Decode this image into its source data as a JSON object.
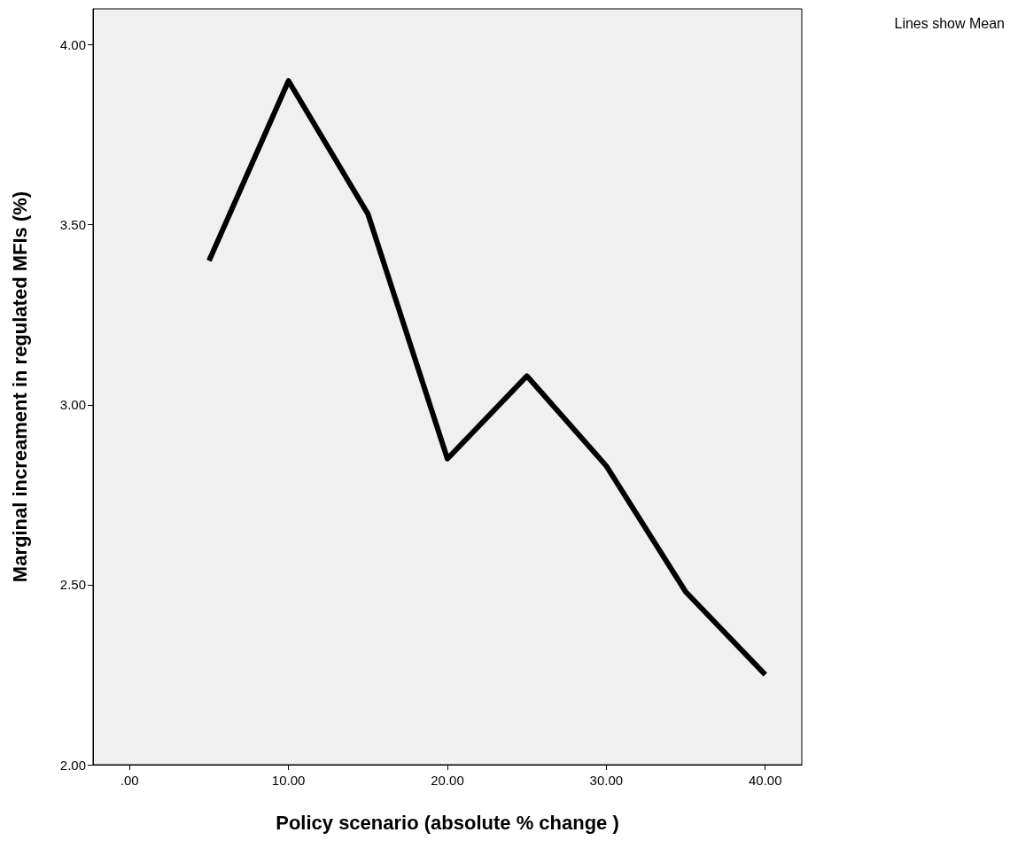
{
  "chart_data": {
    "type": "line",
    "xlabel": "Policy scenario (absolute % change )",
    "ylabel": "Marginal increament in regulated MFIs (%)",
    "x": [
      5,
      10,
      15,
      20,
      25,
      30,
      35,
      40
    ],
    "series": [
      {
        "color": "#000000",
        "values": [
          3.4,
          3.9,
          3.53,
          2.85,
          3.08,
          2.83,
          2.48,
          2.25
        ]
      }
    ],
    "xlim": [
      -2.3,
      42.3
    ],
    "xticks": [
      {
        "value": 0,
        "label": ".00"
      },
      {
        "value": 10,
        "label": "10.00"
      },
      {
        "value": 20,
        "label": "20.00"
      },
      {
        "value": 30,
        "label": "30.00"
      },
      {
        "value": 40,
        "label": "40.00"
      }
    ],
    "ylim": [
      2.0,
      4.1
    ],
    "yticks": [
      {
        "value": 2,
        "label": "2.00"
      },
      {
        "value": 2.5,
        "label": "2.50"
      },
      {
        "value": 3,
        "label": "3.00"
      },
      {
        "value": 3.5,
        "label": "3.50"
      },
      {
        "value": 4,
        "label": "4.00"
      }
    ],
    "grid": false,
    "marker": "none",
    "line_style": "solid",
    "annotations": [
      "Lines show Mean"
    ]
  }
}
